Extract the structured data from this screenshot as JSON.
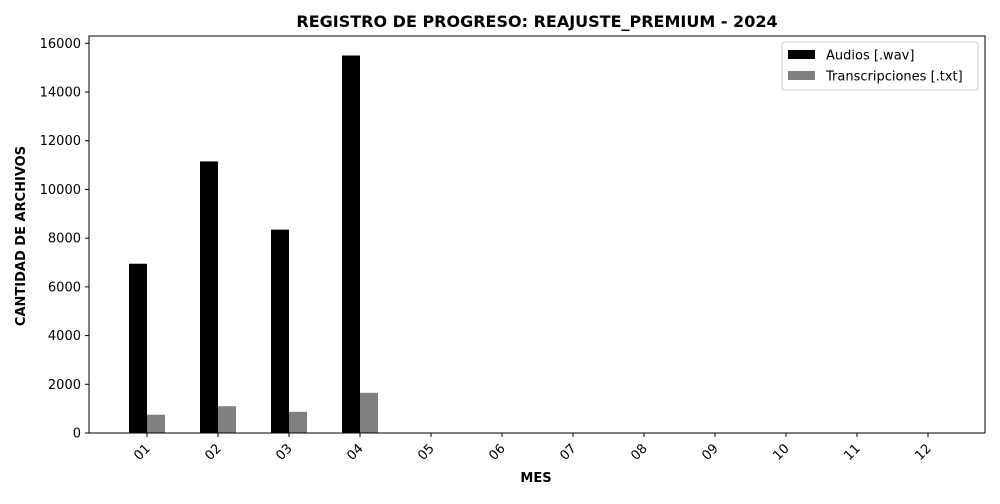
{
  "chart_data": {
    "type": "bar",
    "title": "REGISTRO DE PROGRESO: REAJUSTE_PREMIUM - 2024",
    "xlabel": "MES",
    "ylabel": "CANTIDAD DE ARCHIVOS",
    "categories": [
      "01",
      "02",
      "03",
      "04",
      "05",
      "06",
      "07",
      "08",
      "09",
      "10",
      "11",
      "12"
    ],
    "ylim": [
      0,
      16300
    ],
    "yticks": [
      0,
      2000,
      4000,
      6000,
      8000,
      10000,
      12000,
      14000,
      16000
    ],
    "grid": false,
    "legend_position": "top-right",
    "series": [
      {
        "name": "Audios [.wav]",
        "color": "#000000",
        "values": [
          6950,
          11150,
          8350,
          15500,
          0,
          0,
          0,
          0,
          0,
          0,
          0,
          0
        ]
      },
      {
        "name": "Transcripciones [.txt]",
        "color": "#808080",
        "values": [
          750,
          1100,
          870,
          1650,
          0,
          0,
          0,
          0,
          0,
          0,
          0,
          0
        ]
      }
    ]
  }
}
